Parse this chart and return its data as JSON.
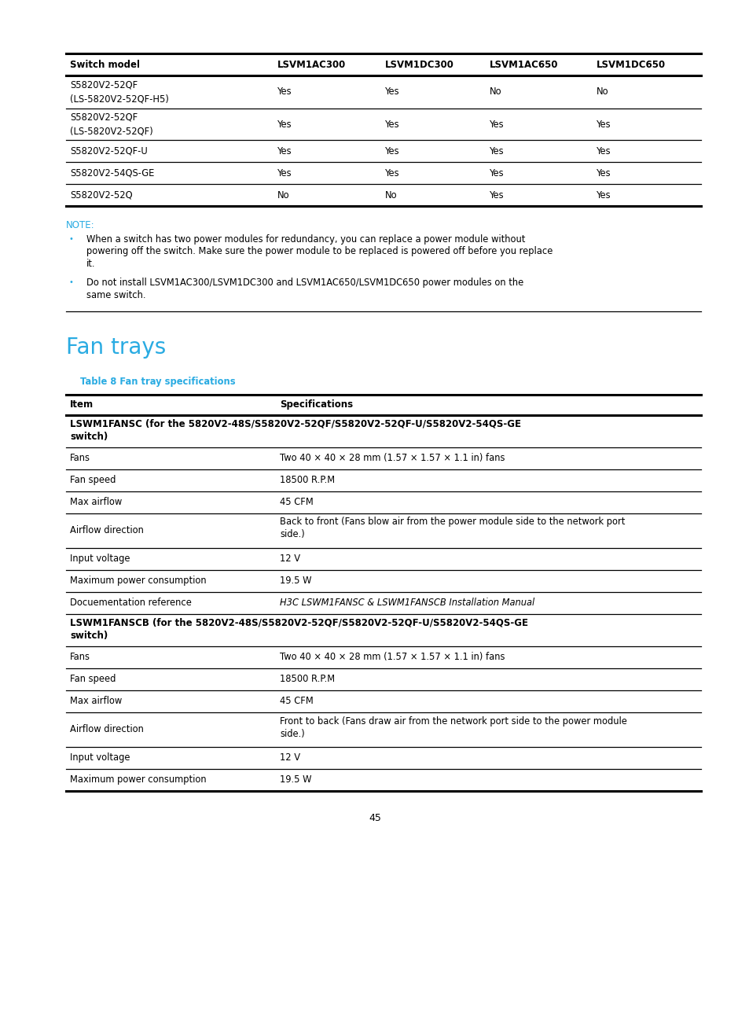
{
  "bg_color": "#ffffff",
  "page_number": "45",
  "ml": 0.088,
  "mr": 0.935,
  "t1_cols": [
    0.088,
    0.365,
    0.508,
    0.648,
    0.79
  ],
  "t1_header": [
    "Switch model",
    "LSVM1AC300",
    "LSVM1DC300",
    "LSVM1AC650",
    "LSVM1DC650"
  ],
  "t1_rows": [
    [
      "S5820V2-52QF\n(LS-5820V2-52QF-H5)",
      "Yes",
      "Yes",
      "No",
      "No"
    ],
    [
      "S5820V2-52QF\n(LS-5820V2-52QF)",
      "Yes",
      "Yes",
      "Yes",
      "Yes"
    ],
    [
      "S5820V2-52QF-U",
      "Yes",
      "Yes",
      "Yes",
      "Yes"
    ],
    [
      "S5820V2-54QS-GE",
      "Yes",
      "Yes",
      "Yes",
      "Yes"
    ],
    [
      "S5820V2-52Q",
      "No",
      "No",
      "Yes",
      "Yes"
    ]
  ],
  "note_label": "NOTE:",
  "note_color": "#29abe2",
  "note_bullet_color": "#29abe2",
  "note_bullets": [
    [
      "When a switch has two power modules for redundancy, you can replace a power module without",
      "powering off the switch. Make sure the power module to be replaced is powered off before you replace",
      "it."
    ],
    [
      "Do not install LSVM1AC300/LSVM1DC300 and LSVM1AC650/LSVM1DC650 power modules on the",
      "same switch."
    ]
  ],
  "section_title": "Fan trays",
  "section_title_color": "#29abe2",
  "table2_label": "Table 8 Fan tray specifications",
  "table2_label_color": "#29abe2",
  "t2_cols": [
    0.088,
    0.368
  ],
  "t2_header": [
    "Item",
    "Specifications"
  ],
  "t2_sections": [
    {
      "header_lines": [
        "LSWM1FANSC (for the 5820V2-48S/S5820V2-52QF/S5820V2-52QF-U/S5820V2-54QS-GE",
        "switch)"
      ],
      "rows": [
        {
          "item": "Fans",
          "spec": [
            "Two 40 × 40 × 28 mm (1.57 × 1.57 × 1.1 in) fans"
          ],
          "italic": false
        },
        {
          "item": "Fan speed",
          "spec": [
            "18500 R.P.M"
          ],
          "italic": false
        },
        {
          "item": "Max airflow",
          "spec": [
            "45 CFM"
          ],
          "italic": false
        },
        {
          "item": "Airflow direction",
          "spec": [
            "Back to front (Fans blow air from the power module side to the network port",
            "side.)"
          ],
          "italic": false
        },
        {
          "item": "Input voltage",
          "spec": [
            "12 V"
          ],
          "italic": false
        },
        {
          "item": "Maximum power consumption",
          "spec": [
            "19.5 W"
          ],
          "italic": false
        },
        {
          "item": "Docuementation reference",
          "spec": [
            "H3C LSWM1FANSC & LSWM1FANSCB Installation Manual"
          ],
          "italic": true
        }
      ]
    },
    {
      "header_lines": [
        "LSWM1FANSCB (for the 5820V2-48S/S5820V2-52QF/S5820V2-52QF-U/S5820V2-54QS-GE",
        "switch)"
      ],
      "rows": [
        {
          "item": "Fans",
          "spec": [
            "Two 40 × 40 × 28 mm (1.57 × 1.57 × 1.1 in) fans"
          ],
          "italic": false
        },
        {
          "item": "Fan speed",
          "spec": [
            "18500 R.P.M"
          ],
          "italic": false
        },
        {
          "item": "Max airflow",
          "spec": [
            "45 CFM"
          ],
          "italic": false
        },
        {
          "item": "Airflow direction",
          "spec": [
            "Front to back (Fans draw air from the network port side to the power module",
            "side.)"
          ],
          "italic": false
        },
        {
          "item": "Input voltage",
          "spec": [
            "12 V"
          ],
          "italic": false
        },
        {
          "item": "Maximum power consumption",
          "spec": [
            "19.5 W"
          ],
          "italic": false
        }
      ]
    }
  ]
}
